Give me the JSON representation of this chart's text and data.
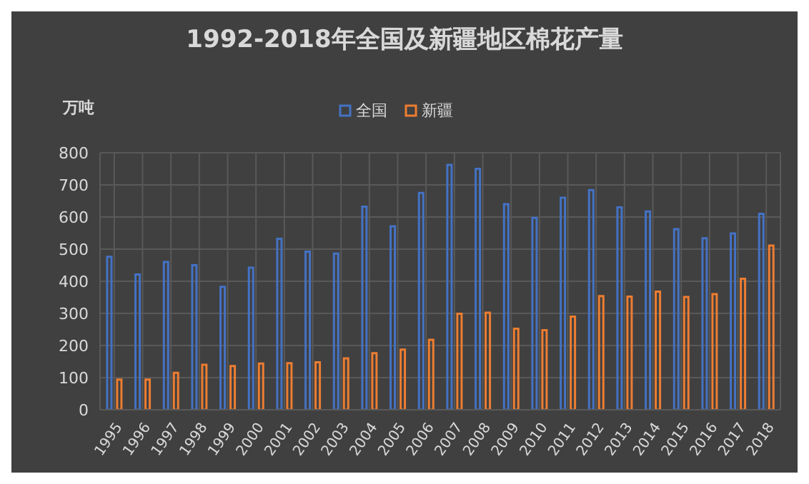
{
  "chart_data": {
    "type": "bar",
    "title": "1992-2018年全国及新疆地区棉花产量",
    "ylabel": "万吨",
    "categories": [
      "1995",
      "1996",
      "1997",
      "1998",
      "1999",
      "2000",
      "2001",
      "2002",
      "2003",
      "2004",
      "2005",
      "2006",
      "2007",
      "2008",
      "2009",
      "2010",
      "2011",
      "2012",
      "2013",
      "2014",
      "2015",
      "2016",
      "2017",
      "2018"
    ],
    "series": [
      {
        "name": "全国",
        "color": "#4472c4",
        "values": [
          476,
          421,
          460,
          450,
          383,
          442,
          532,
          492,
          486,
          632,
          571,
          675,
          762,
          750,
          640,
          597,
          660,
          684,
          630,
          617,
          562,
          534,
          549,
          610
        ]
      },
      {
        "name": "新疆",
        "color": "#ed7d31",
        "values": [
          94,
          94,
          115,
          140,
          136,
          144,
          145,
          148,
          160,
          176,
          187,
          218,
          299,
          302,
          252,
          248,
          290,
          354,
          352,
          368,
          351,
          360,
          408,
          511
        ]
      }
    ],
    "ylim": [
      0,
      800
    ],
    "yticks": [
      0,
      100,
      200,
      300,
      400,
      500,
      600,
      700,
      800
    ],
    "grid": true,
    "legend": "top"
  }
}
